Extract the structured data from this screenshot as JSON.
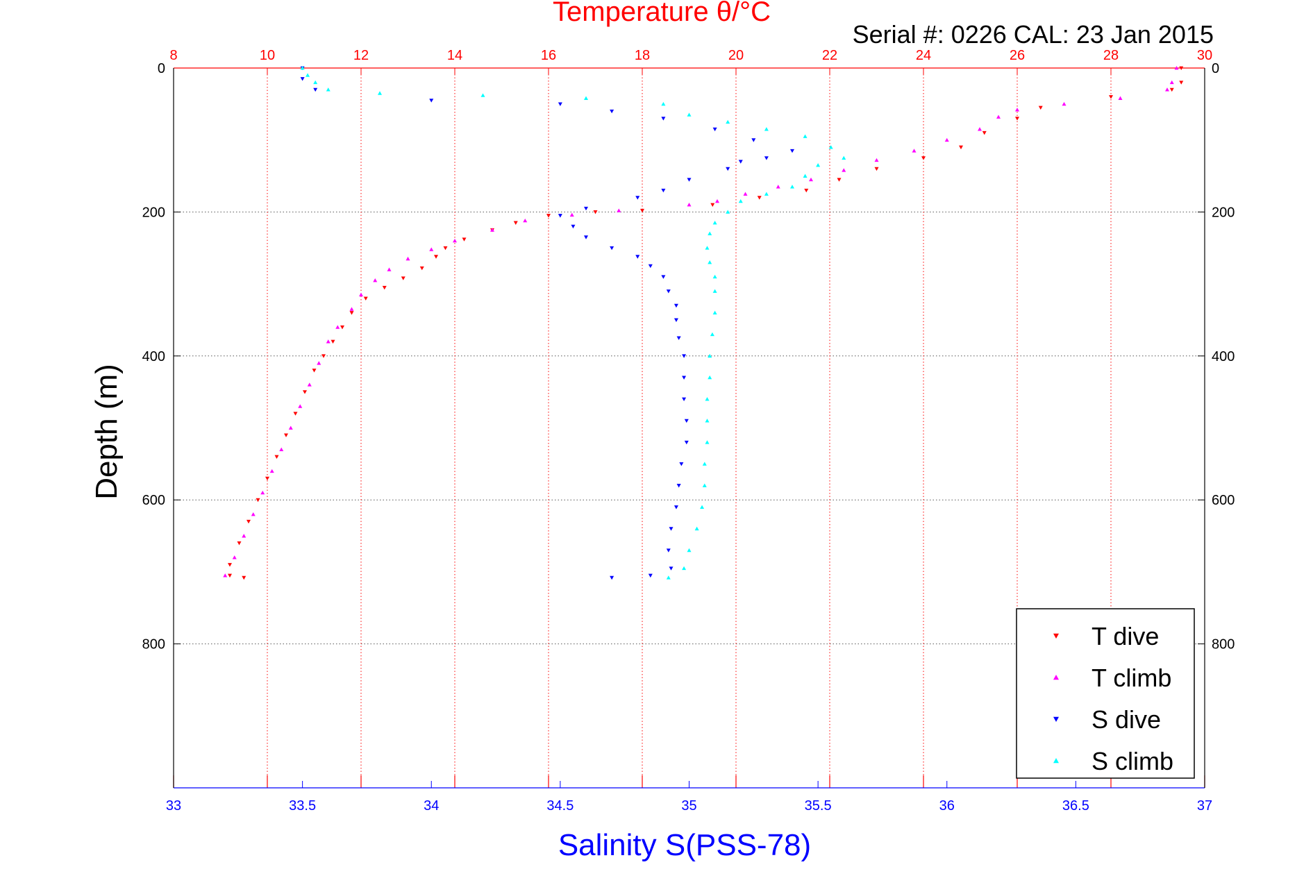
{
  "chart_data": {
    "type": "scatter",
    "title": "Temperature θ/°C",
    "subtitle": "Serial #: 0226  CAL: 23 Jan 2015",
    "ylabel": "Depth (m)",
    "xlabel": "Salinity S(PSS-78)",
    "top_axis_label": "Temperature θ/°C",
    "ylim": [
      0,
      1000
    ],
    "y_reversed": true,
    "xlim_salinity": [
      33,
      37
    ],
    "xlim_temperature": [
      8,
      30
    ],
    "y_ticks": [
      "0",
      "200",
      "400",
      "600",
      "800"
    ],
    "x_ticks_salinity": [
      "33",
      "33.5",
      "34",
      "34.5",
      "35",
      "35.5",
      "36",
      "36.5",
      "37"
    ],
    "x_ticks_temperature": [
      "8",
      "10",
      "12",
      "14",
      "16",
      "18",
      "20",
      "22",
      "24",
      "26",
      "28",
      "30"
    ],
    "grid": true,
    "legend_position": "bottom-right",
    "colors": {
      "temperature_axis": "#ff0000",
      "salinity_axis": "#0000ff",
      "title": "#ff0000",
      "subtitle": "#000000"
    },
    "series": [
      {
        "name": "T dive",
        "axis": "temperature",
        "color": "#ff0000",
        "marker": "triangle-down",
        "points": [
          [
            29.5,
            0
          ],
          [
            29.5,
            20
          ],
          [
            29.3,
            30
          ],
          [
            28.0,
            40
          ],
          [
            26.5,
            55
          ],
          [
            26.0,
            70
          ],
          [
            25.3,
            90
          ],
          [
            24.8,
            110
          ],
          [
            24.0,
            125
          ],
          [
            23.0,
            140
          ],
          [
            22.2,
            155
          ],
          [
            21.5,
            170
          ],
          [
            20.5,
            180
          ],
          [
            19.5,
            190
          ],
          [
            18.0,
            198
          ],
          [
            17.0,
            200
          ],
          [
            16.0,
            205
          ],
          [
            15.3,
            215
          ],
          [
            14.8,
            225
          ],
          [
            14.2,
            238
          ],
          [
            13.8,
            250
          ],
          [
            13.6,
            262
          ],
          [
            13.3,
            278
          ],
          [
            12.9,
            292
          ],
          [
            12.5,
            305
          ],
          [
            12.1,
            320
          ],
          [
            11.8,
            340
          ],
          [
            11.6,
            360
          ],
          [
            11.4,
            380
          ],
          [
            11.2,
            400
          ],
          [
            11.0,
            420
          ],
          [
            10.8,
            450
          ],
          [
            10.6,
            480
          ],
          [
            10.4,
            510
          ],
          [
            10.2,
            540
          ],
          [
            10.0,
            570
          ],
          [
            9.8,
            600
          ],
          [
            9.6,
            630
          ],
          [
            9.4,
            660
          ],
          [
            9.2,
            690
          ],
          [
            9.2,
            705
          ],
          [
            9.5,
            708
          ]
        ]
      },
      {
        "name": "T climb",
        "axis": "temperature",
        "color": "#ff00ff",
        "marker": "triangle-up",
        "points": [
          [
            29.4,
            0
          ],
          [
            29.3,
            20
          ],
          [
            29.2,
            30
          ],
          [
            28.2,
            42
          ],
          [
            27.0,
            50
          ],
          [
            26.0,
            58
          ],
          [
            25.6,
            68
          ],
          [
            25.2,
            85
          ],
          [
            24.5,
            100
          ],
          [
            23.8,
            115
          ],
          [
            23.0,
            128
          ],
          [
            22.3,
            142
          ],
          [
            21.6,
            155
          ],
          [
            20.9,
            165
          ],
          [
            20.2,
            175
          ],
          [
            19.6,
            185
          ],
          [
            19.0,
            190
          ],
          [
            17.5,
            198
          ],
          [
            16.5,
            204
          ],
          [
            15.5,
            212
          ],
          [
            14.8,
            225
          ],
          [
            14.0,
            240
          ],
          [
            13.5,
            252
          ],
          [
            13.0,
            265
          ],
          [
            12.6,
            280
          ],
          [
            12.3,
            295
          ],
          [
            12.0,
            315
          ],
          [
            11.8,
            335
          ],
          [
            11.5,
            360
          ],
          [
            11.3,
            380
          ],
          [
            11.1,
            410
          ],
          [
            10.9,
            440
          ],
          [
            10.7,
            470
          ],
          [
            10.5,
            500
          ],
          [
            10.3,
            530
          ],
          [
            10.1,
            560
          ],
          [
            9.9,
            590
          ],
          [
            9.7,
            620
          ],
          [
            9.5,
            650
          ],
          [
            9.3,
            680
          ],
          [
            9.1,
            705
          ]
        ]
      },
      {
        "name": "S dive",
        "axis": "salinity",
        "color": "#0000ff",
        "marker": "triangle-down",
        "points": [
          [
            33.5,
            0
          ],
          [
            33.5,
            15
          ],
          [
            33.55,
            30
          ],
          [
            34.0,
            45
          ],
          [
            34.5,
            50
          ],
          [
            34.7,
            60
          ],
          [
            34.9,
            70
          ],
          [
            35.1,
            85
          ],
          [
            35.25,
            100
          ],
          [
            35.4,
            115
          ],
          [
            35.3,
            125
          ],
          [
            35.2,
            130
          ],
          [
            35.15,
            140
          ],
          [
            35.0,
            155
          ],
          [
            34.9,
            170
          ],
          [
            34.8,
            180
          ],
          [
            34.6,
            195
          ],
          [
            34.5,
            205
          ],
          [
            34.55,
            220
          ],
          [
            34.6,
            235
          ],
          [
            34.7,
            250
          ],
          [
            34.8,
            262
          ],
          [
            34.85,
            275
          ],
          [
            34.9,
            290
          ],
          [
            34.92,
            310
          ],
          [
            34.95,
            330
          ],
          [
            34.95,
            350
          ],
          [
            34.96,
            375
          ],
          [
            34.98,
            400
          ],
          [
            34.98,
            430
          ],
          [
            34.98,
            460
          ],
          [
            34.99,
            490
          ],
          [
            34.99,
            520
          ],
          [
            34.97,
            550
          ],
          [
            34.96,
            580
          ],
          [
            34.95,
            610
          ],
          [
            34.93,
            640
          ],
          [
            34.92,
            670
          ],
          [
            34.93,
            695
          ],
          [
            34.85,
            705
          ],
          [
            34.7,
            708
          ]
        ]
      },
      {
        "name": "S climb",
        "axis": "salinity",
        "color": "#00ffff",
        "marker": "triangle-up",
        "points": [
          [
            33.5,
            0
          ],
          [
            33.52,
            10
          ],
          [
            33.55,
            20
          ],
          [
            33.6,
            30
          ],
          [
            33.8,
            35
          ],
          [
            34.2,
            38
          ],
          [
            34.6,
            42
          ],
          [
            34.9,
            50
          ],
          [
            35.0,
            65
          ],
          [
            35.15,
            75
          ],
          [
            35.3,
            85
          ],
          [
            35.45,
            95
          ],
          [
            35.55,
            110
          ],
          [
            35.6,
            125
          ],
          [
            35.5,
            135
          ],
          [
            35.45,
            150
          ],
          [
            35.4,
            165
          ],
          [
            35.3,
            175
          ],
          [
            35.2,
            185
          ],
          [
            35.15,
            200
          ],
          [
            35.1,
            215
          ],
          [
            35.08,
            230
          ],
          [
            35.07,
            250
          ],
          [
            35.08,
            270
          ],
          [
            35.1,
            290
          ],
          [
            35.1,
            310
          ],
          [
            35.1,
            340
          ],
          [
            35.09,
            370
          ],
          [
            35.08,
            400
          ],
          [
            35.08,
            430
          ],
          [
            35.07,
            460
          ],
          [
            35.07,
            490
          ],
          [
            35.07,
            520
          ],
          [
            35.06,
            550
          ],
          [
            35.06,
            580
          ],
          [
            35.05,
            610
          ],
          [
            35.03,
            640
          ],
          [
            35.0,
            670
          ],
          [
            34.98,
            695
          ],
          [
            34.92,
            708
          ]
        ]
      }
    ]
  }
}
